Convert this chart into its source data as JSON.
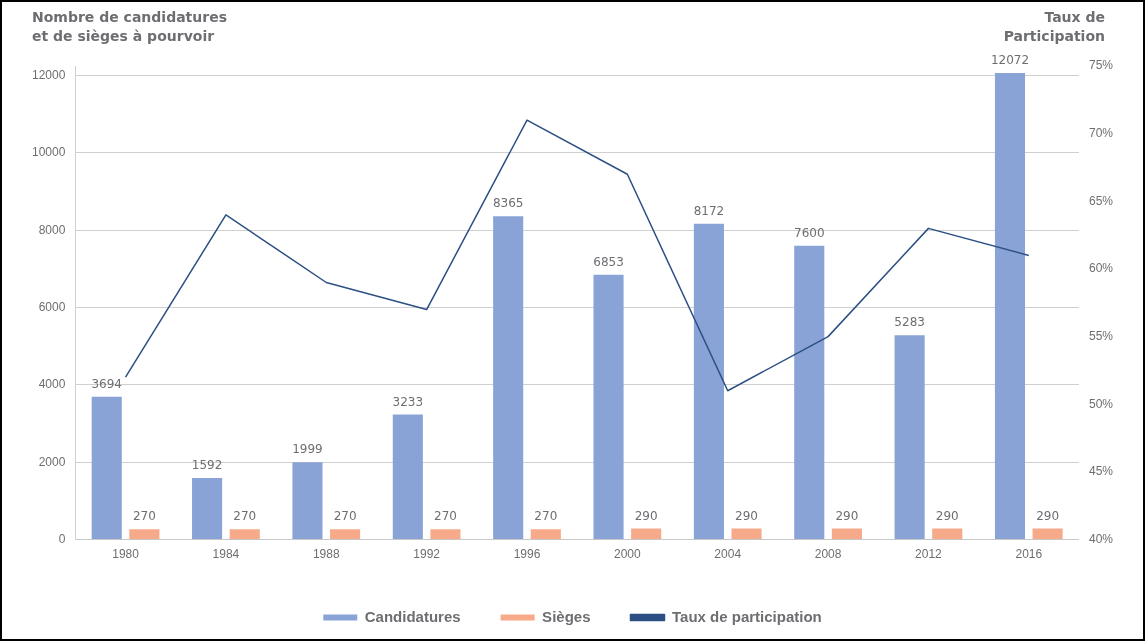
{
  "chart_data": {
    "type": "bar",
    "ylabel": "Nombre de candidatures\net de sièges à pourvoir",
    "y2label": "Taux de\nParticipation",
    "categories": [
      "1980",
      "1984",
      "1988",
      "1992",
      "1996",
      "2000",
      "2004",
      "2008",
      "2012",
      "2016"
    ],
    "series": [
      {
        "name": "Candidatures",
        "color": "#8aa3d6",
        "values": [
          3694,
          1592,
          1999,
          3233,
          8365,
          6853,
          8172,
          7600,
          5283,
          12072
        ],
        "value_labels": [
          "3694",
          "1592",
          "1999",
          "3233",
          "8365",
          "6853",
          "8172",
          "7600",
          "5283",
          "12072"
        ]
      },
      {
        "name": "Sièges",
        "color": "#f7aa8a",
        "values": [
          270,
          270,
          270,
          270,
          270,
          290,
          290,
          290,
          290,
          290
        ],
        "value_labels": [
          "270",
          "270",
          "270",
          "270",
          "270",
          "290",
          "290",
          "290",
          "290",
          "290"
        ]
      },
      {
        "name": "Taux de participation",
        "type": "line",
        "axis": "y2",
        "color": "#2c4f84",
        "values": [
          52,
          64,
          59,
          57,
          71,
          67,
          51,
          55,
          63,
          61
        ]
      }
    ],
    "ylim": [
      0,
      12250
    ],
    "yticks": [
      0,
      2000,
      4000,
      6000,
      8000,
      10000,
      12000
    ],
    "y2lim": [
      40,
      75
    ],
    "y2ticks": [
      {
        "value": 40,
        "label": "40%"
      },
      {
        "value": 45,
        "label": "45%"
      },
      {
        "value": 50,
        "label": "50%"
      },
      {
        "value": 55,
        "label": "55%"
      },
      {
        "value": 60,
        "label": "60%"
      },
      {
        "value": 65,
        "label": "65%"
      },
      {
        "value": 70,
        "label": "70%"
      },
      {
        "value": 75,
        "label": "75%"
      }
    ],
    "grid": "y",
    "legend": "bottom",
    "marker": "none"
  }
}
